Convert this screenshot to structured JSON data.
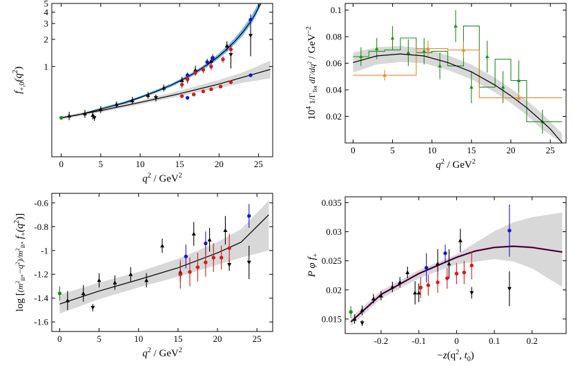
{
  "colors": {
    "black": "#000000",
    "blue": "#1515d0",
    "red": "#d81818",
    "green": "#1c8c1c",
    "orange": "#e08a2a",
    "band_gray": "#d8d8d8",
    "band_blue": "#6fb6ec",
    "magenta": "#b0208c"
  },
  "chart_data": [
    {
      "type": "scatter",
      "panel": "top-left",
      "xlabel_main": "q",
      "xlabel_sup": "2",
      "xlabel_unit": "/ GeV",
      "xlabel_unit_sup": "2",
      "ylabel_f": "f",
      "ylabel_sub": "+,0",
      "ylabel_paren": "(q",
      "ylabel_sup": "2",
      "ylabel_close": ")",
      "xlim": [
        -1.2,
        26.8
      ],
      "ylim": [
        0.1,
        5.0
      ],
      "y_scale": "log",
      "xticks": [
        0,
        5,
        10,
        15,
        20,
        25
      ],
      "xtick_labels": [
        "0",
        "5",
        "10",
        "15",
        "20",
        "25"
      ],
      "yticks": [
        1,
        2,
        3,
        4,
        5
      ],
      "ytick_labels": [
        "1",
        "2",
        "3",
        "4",
        "5"
      ],
      "grid": false,
      "bands": [
        {
          "name": "f_plus",
          "color": "blue",
          "x": [
            0,
            2,
            4,
            6,
            8,
            10,
            12,
            14,
            16,
            17,
            18,
            19,
            20,
            21,
            22,
            23,
            24,
            24.5,
            25,
            25.3
          ],
          "lo": [
            0.26,
            0.28,
            0.31,
            0.34,
            0.38,
            0.44,
            0.51,
            0.6,
            0.73,
            0.82,
            0.93,
            1.06,
            1.23,
            1.45,
            1.77,
            2.2,
            2.9,
            3.4,
            4.15,
            4.8
          ],
          "hi": [
            0.28,
            0.3,
            0.33,
            0.37,
            0.41,
            0.47,
            0.55,
            0.65,
            0.8,
            0.9,
            1.03,
            1.19,
            1.4,
            1.68,
            2.07,
            2.65,
            3.5,
            4.2,
            5.0,
            5.0
          ]
        },
        {
          "name": "f_zero",
          "color": "gray",
          "x": [
            0,
            5,
            10,
            15,
            20,
            23,
            26.5
          ],
          "lo": [
            0.26,
            0.31,
            0.38,
            0.47,
            0.58,
            0.66,
            0.74
          ],
          "hi": [
            0.28,
            0.34,
            0.42,
            0.54,
            0.71,
            0.86,
            1.16
          ]
        }
      ],
      "curves": [
        {
          "name": "f_plus",
          "x": [
            0,
            2,
            4,
            6,
            8,
            10,
            12,
            14,
            16,
            17,
            18,
            19,
            20,
            21,
            22,
            23,
            24,
            24.5,
            25,
            25.3
          ],
          "y": [
            0.27,
            0.29,
            0.32,
            0.355,
            0.395,
            0.455,
            0.53,
            0.625,
            0.765,
            0.86,
            0.98,
            1.12,
            1.31,
            1.56,
            1.9,
            2.4,
            3.15,
            3.7,
            4.5,
            5.0
          ]
        },
        {
          "name": "f_zero",
          "x": [
            0,
            5,
            10,
            15,
            20,
            23,
            26.5
          ],
          "y": [
            0.27,
            0.325,
            0.4,
            0.5,
            0.64,
            0.76,
            0.93
          ]
        }
      ],
      "series": [
        {
          "color": "green",
          "marker": "circle",
          "x": [
            0
          ],
          "y": [
            0.27
          ],
          "err": [
            0.012
          ]
        },
        {
          "color": "black",
          "marker": "triangle-up",
          "x": [
            1,
            3,
            4,
            5,
            7,
            9,
            11,
            13,
            15.3,
            17,
            19,
            21
          ],
          "y": [
            0.285,
            0.3,
            0.29,
            0.335,
            0.38,
            0.42,
            0.48,
            0.58,
            0.7,
            0.92,
            1.15,
            1.7
          ],
          "err": [
            0.03,
            0.03,
            0.03,
            0.03,
            0.03,
            0.04,
            0.04,
            0.05,
            0.07,
            0.1,
            0.12,
            0.2
          ]
        },
        {
          "color": "black",
          "marker": "triangle-down",
          "x": [
            4.2,
            12,
            16,
            21.5,
            24
          ],
          "y": [
            0.27,
            0.45,
            0.7,
            1.35,
            2.2
          ],
          "err": [
            0.02,
            0.04,
            0.05,
            0.4,
            0.9
          ]
        },
        {
          "color": "blue",
          "marker": "circle",
          "x": [
            16,
            18.5,
            19.2,
            24
          ],
          "y": [
            0.8,
            1.12,
            1.25,
            3.3
          ],
          "err": [
            0.06,
            0.1,
            0.12,
            0.5
          ]
        },
        {
          "color": "blue",
          "marker": "circle",
          "x": [
            16,
            24
          ],
          "y": [
            0.45,
            0.8
          ],
          "err": [
            0.02,
            0.03
          ]
        },
        {
          "color": "red",
          "marker": "circle",
          "x": [
            15.3,
            16,
            17,
            18,
            19,
            20.5,
            21.5
          ],
          "y": [
            0.63,
            0.73,
            0.85,
            0.92,
            1.0,
            1.2,
            1.55
          ],
          "err": [
            0.06,
            0.07,
            0.07,
            0.08,
            0.09,
            0.1,
            0.15
          ]
        },
        {
          "color": "red",
          "marker": "circle",
          "x": [
            15.3,
            16.8,
            18,
            19,
            20.2,
            21.5
          ],
          "y": [
            0.47,
            0.49,
            0.53,
            0.56,
            0.6,
            0.67
          ],
          "err": [
            0.02,
            0.02,
            0.02,
            0.02,
            0.02,
            0.03
          ]
        }
      ]
    },
    {
      "type": "line",
      "panel": "top-right",
      "xlabel_main": "q",
      "xlabel_sup": "2",
      "xlabel_unit": "/ GeV",
      "xlabel_unit_sup": "2",
      "ylabel_pre": "10",
      "ylabel_pre_sup": "4",
      "ylabel_frac_num": "1",
      "ylabel_frac_den": "Γ",
      "ylabel_frac_den_sub": "Tot",
      "ylabel_frac2_num": "dΓ",
      "ylabel_frac2_den": "dq",
      "ylabel_frac2_den_sup": "2",
      "ylabel_unit": "/ GeV",
      "ylabel_unit_sup": "−2",
      "xlim": [
        -1,
        27
      ],
      "ylim": [
        0,
        0.105
      ],
      "xticks": [
        0,
        5,
        10,
        15,
        20,
        25
      ],
      "xtick_labels": [
        "0",
        "5",
        "10",
        "15",
        "20",
        "25"
      ],
      "yticks": [
        0.02,
        0.04,
        0.06,
        0.08,
        0.1
      ],
      "ytick_labels": [
        "0.02",
        "0.04",
        "0.06",
        "0.08",
        "0.1"
      ],
      "grid": false,
      "band": {
        "x": [
          0,
          3,
          6,
          9,
          12,
          15,
          18,
          20,
          22,
          24,
          26.5
        ],
        "lo": [
          0.053,
          0.059,
          0.061,
          0.06,
          0.055,
          0.048,
          0.038,
          0.03,
          0.021,
          0.01,
          0.0
        ],
        "hi": [
          0.068,
          0.072,
          0.073,
          0.071,
          0.066,
          0.059,
          0.049,
          0.041,
          0.032,
          0.022,
          0.007
        ]
      },
      "curve": {
        "x": [
          0,
          3,
          6,
          9,
          12,
          15,
          18,
          20,
          22,
          24,
          25,
          26.5
        ],
        "y": [
          0.0605,
          0.0655,
          0.067,
          0.0655,
          0.0605,
          0.0535,
          0.0435,
          0.0355,
          0.0265,
          0.016,
          0.0105,
          0.0
        ]
      },
      "histograms": [
        {
          "color": "green",
          "edges": [
            0,
            2,
            4,
            6,
            8,
            10,
            12,
            14,
            16,
            18,
            20,
            22,
            26.5
          ],
          "values": [
            0.065,
            0.069,
            0.07,
            0.079,
            0.068,
            0.069,
            0.058,
            0.088,
            0.042,
            0.063,
            0.047,
            0.016
          ],
          "points_x": [
            1,
            3,
            5,
            7,
            9,
            11,
            13,
            15,
            17,
            19,
            21,
            24
          ],
          "points_y": [
            0.065,
            0.071,
            0.079,
            0.068,
            0.069,
            0.058,
            0.088,
            0.042,
            0.065,
            0.042,
            0.047,
            0.016
          ],
          "err": [
            0.007,
            0.008,
            0.009,
            0.01,
            0.01,
            0.01,
            0.012,
            0.012,
            0.012,
            0.012,
            0.015,
            0.009
          ]
        },
        {
          "color": "orange",
          "edges": [
            0,
            8,
            12,
            16,
            26.5
          ],
          "values": [
            0.051,
            0.071,
            0.07,
            0.034
          ],
          "points_x": [
            4,
            9.5,
            14,
            21
          ],
          "points_y": [
            0.051,
            0.071,
            0.07,
            0.034
          ],
          "err": [
            0.004,
            0.006,
            0.006,
            0.004
          ]
        }
      ]
    },
    {
      "type": "scatter",
      "panel": "bottom-left",
      "xlabel_main": "q",
      "xlabel_sup": "2",
      "xlabel_unit": "/ GeV",
      "xlabel_unit_sup": "2",
      "ylabel": "log[(m_{B*}^2−q^2)/m_{B*}^2 f_+(q^2)]",
      "ylabel_log": "log [",
      "ylabel_num": "m",
      "ylabel_num_sub": "B*",
      "ylabel_num_sup": "2",
      "ylabel_num_rest": "−q",
      "ylabel_num_rest_sup": "2",
      "ylabel_den": "m",
      "ylabel_den_sub": "B*",
      "ylabel_den_sup": "2",
      "ylabel_f": "f",
      "ylabel_f_sub": "+",
      "ylabel_paren": "(q",
      "ylabel_paren_sup": "2",
      "ylabel_close": ")]",
      "xlim": [
        -1,
        27
      ],
      "ylim": [
        -1.68,
        -0.52
      ],
      "xticks": [
        0,
        5,
        10,
        15,
        20,
        25
      ],
      "xtick_labels": [
        "0",
        "5",
        "10",
        "15",
        "20",
        "25"
      ],
      "yticks": [
        -1.6,
        -1.4,
        -1.2,
        -1.0,
        -0.8,
        -0.6
      ],
      "ytick_labels": [
        "-1.6",
        "-1.4",
        "-1.2",
        "-1",
        "-0.8",
        "-0.6"
      ],
      "grid": false,
      "band": {
        "x": [
          0,
          5,
          10,
          15,
          20,
          23,
          26.5
        ],
        "lo": [
          -1.53,
          -1.41,
          -1.31,
          -1.22,
          -1.12,
          -1.06,
          -1.0
        ],
        "hi": [
          -1.37,
          -1.27,
          -1.18,
          -1.07,
          -0.93,
          -0.82,
          -0.58
        ]
      },
      "curve": {
        "x": [
          0,
          5,
          10,
          15,
          20,
          23,
          26.5
        ],
        "y": [
          -1.45,
          -1.34,
          -1.245,
          -1.145,
          -1.02,
          -0.93,
          -0.7
        ]
      },
      "series": [
        {
          "color": "green",
          "marker": "circle",
          "x": [
            0
          ],
          "y": [
            -1.36
          ],
          "err": [
            0.06
          ]
        },
        {
          "color": "black",
          "marker": "triangle-up",
          "x": [
            1,
            3,
            5,
            7,
            9,
            11,
            13,
            15.3,
            17,
            19,
            21
          ],
          "y": [
            -1.42,
            -1.36,
            -1.25,
            -1.27,
            -1.2,
            -1.25,
            -0.96,
            -1.18,
            -0.86,
            -0.91,
            -0.83
          ],
          "err": [
            0.08,
            0.07,
            0.06,
            0.06,
            0.06,
            0.06,
            0.06,
            0.08,
            0.1,
            0.1,
            0.12
          ]
        },
        {
          "color": "black",
          "marker": "triangle-down",
          "x": [
            4.2,
            21.5,
            24
          ],
          "y": [
            -1.48,
            -1.12,
            -1.1
          ],
          "err": [
            0.03,
            0.05,
            0.14
          ]
        },
        {
          "color": "blue",
          "marker": "circle",
          "x": [
            16,
            18.5,
            24
          ],
          "y": [
            -1.05,
            -0.94,
            -0.71
          ],
          "err": [
            0.1,
            0.1,
            0.1
          ]
        },
        {
          "color": "red",
          "marker": "circle",
          "x": [
            15.3,
            16.5,
            17.5,
            18.5,
            19.5,
            20.5,
            21.5
          ],
          "y": [
            -1.2,
            -1.18,
            -1.14,
            -1.1,
            -1.06,
            -1.06,
            -0.98
          ],
          "err": [
            0.12,
            0.12,
            0.12,
            0.12,
            0.12,
            0.1,
            0.12
          ]
        }
      ]
    },
    {
      "type": "scatter",
      "panel": "bottom-right",
      "xlabel": "−z(q², t₀)",
      "xlabel_neg": "−",
      "xlabel_z": "z",
      "xlabel_args": "(q",
      "xlabel_args_sup": "2",
      "xlabel_t": ", t",
      "xlabel_t_sub": "0",
      "xlabel_close": ")",
      "ylabel_pphi": "P φ f",
      "ylabel_sub": "+",
      "xlim": [
        -0.295,
        0.29
      ],
      "ylim": [
        0.0125,
        0.036
      ],
      "xticks": [
        -0.2,
        -0.1,
        0.0,
        0.1,
        0.2
      ],
      "xtick_labels": [
        "-0.2",
        "-0.1",
        "0",
        "0.1",
        "0.2"
      ],
      "yticks": [
        0.015,
        0.02,
        0.025,
        0.03,
        0.035
      ],
      "ytick_labels": [
        "0.015",
        "0.02",
        "0.025",
        "0.03",
        "0.035"
      ],
      "grid": false,
      "band": {
        "x": [
          -0.28,
          -0.2,
          -0.1,
          0.0,
          0.1,
          0.15,
          0.2,
          0.28
        ],
        "lo": [
          0.0138,
          0.0185,
          0.022,
          0.0244,
          0.0253,
          0.0249,
          0.0237,
          0.0205
        ],
        "hi": [
          0.0152,
          0.0199,
          0.0234,
          0.0261,
          0.0301,
          0.0316,
          0.0325,
          0.0333
        ]
      },
      "curve": {
        "x": [
          -0.28,
          -0.2,
          -0.1,
          0.0,
          0.05,
          0.1,
          0.15,
          0.2,
          0.28
        ],
        "y": [
          0.0145,
          0.0192,
          0.0228,
          0.0256,
          0.0267,
          0.0273,
          0.0275,
          0.0273,
          0.0265
        ]
      },
      "series": [
        {
          "color": "green",
          "marker": "circle",
          "x": [
            -0.28
          ],
          "y": [
            0.0162
          ],
          "err": [
            0.001
          ]
        },
        {
          "color": "black",
          "marker": "triangle-up",
          "x": [
            -0.27,
            -0.25,
            -0.22,
            -0.2,
            -0.17,
            -0.15,
            -0.13,
            -0.11,
            -0.1,
            -0.05,
            -0.02,
            0.01
          ],
          "y": [
            0.015,
            0.0165,
            0.0185,
            0.019,
            0.0205,
            0.0213,
            0.023,
            0.0195,
            0.0195,
            0.0245,
            0.0245,
            0.0285
          ],
          "err": [
            0.0008,
            0.0008,
            0.0008,
            0.0008,
            0.0009,
            0.0009,
            0.001,
            0.002,
            0.0016,
            0.0025,
            0.0025,
            0.002
          ]
        },
        {
          "color": "black",
          "marker": "triangle-down",
          "x": [
            -0.25,
            0.04,
            0.14
          ],
          "y": [
            0.0143,
            0.0195,
            0.0202
          ],
          "err": [
            0.0005,
            0.001,
            0.003
          ]
        },
        {
          "color": "blue",
          "marker": "circle",
          "x": [
            -0.08,
            -0.03,
            0.14
          ],
          "y": [
            0.0238,
            0.0263,
            0.0302
          ],
          "err": [
            0.0025,
            0.0015,
            0.0045
          ]
        },
        {
          "color": "red",
          "marker": "circle",
          "x": [
            -0.095,
            -0.075,
            -0.05,
            -0.025,
            0.0,
            0.02,
            0.04
          ],
          "y": [
            0.0204,
            0.0208,
            0.0213,
            0.022,
            0.0228,
            0.023,
            0.0242
          ],
          "err": [
            0.0018,
            0.0018,
            0.0018,
            0.0018,
            0.0018,
            0.002,
            0.0024
          ]
        }
      ]
    }
  ]
}
